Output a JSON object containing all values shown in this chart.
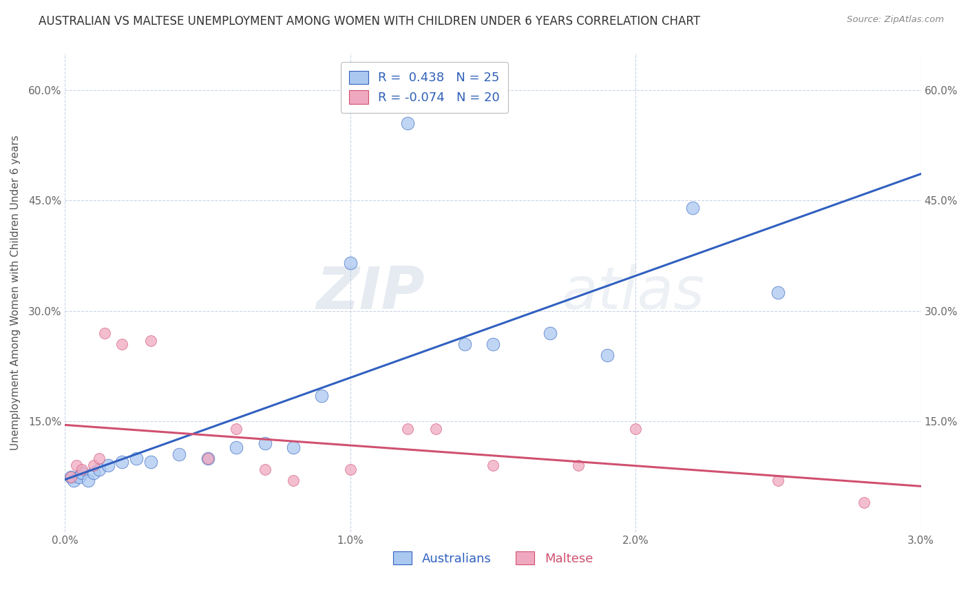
{
  "title": "AUSTRALIAN VS MALTESE UNEMPLOYMENT AMONG WOMEN WITH CHILDREN UNDER 6 YEARS CORRELATION CHART",
  "source": "Source: ZipAtlas.com",
  "ylabel": "Unemployment Among Women with Children Under 6 years",
  "xlim": [
    0.0,
    0.03
  ],
  "ylim": [
    0.0,
    0.65
  ],
  "xtick_labels": [
    "0.0%",
    "1.0%",
    "2.0%",
    "3.0%"
  ],
  "xtick_vals": [
    0.0,
    0.01,
    0.02,
    0.03
  ],
  "ytick_labels": [
    "15.0%",
    "30.0%",
    "45.0%",
    "60.0%"
  ],
  "ytick_vals": [
    0.15,
    0.3,
    0.45,
    0.6
  ],
  "r_australian": 0.438,
  "n_australian": 25,
  "r_maltese": -0.074,
  "n_maltese": 20,
  "australian_color": "#aac8f0",
  "maltese_color": "#f0a8c0",
  "australian_line_color": "#3060c0",
  "maltese_line_color": "#d05070",
  "legend_text_color": "#3060b8",
  "watermark_zip": "ZIP",
  "watermark_atlas": "atlas",
  "aus_x": [
    0.0002,
    0.0003,
    0.0005,
    0.0006,
    0.0008,
    0.001,
    0.0012,
    0.0015,
    0.002,
    0.0025,
    0.003,
    0.004,
    0.005,
    0.006,
    0.007,
    0.008,
    0.009,
    0.01,
    0.012,
    0.014,
    0.015,
    0.017,
    0.019,
    0.022,
    0.025
  ],
  "aus_y": [
    0.075,
    0.07,
    0.075,
    0.08,
    0.07,
    0.08,
    0.085,
    0.09,
    0.095,
    0.1,
    0.095,
    0.105,
    0.1,
    0.115,
    0.12,
    0.115,
    0.185,
    0.365,
    0.555,
    0.255,
    0.255,
    0.27,
    0.24,
    0.44,
    0.325
  ],
  "mal_x": [
    0.0002,
    0.0004,
    0.0006,
    0.001,
    0.0012,
    0.0014,
    0.002,
    0.003,
    0.005,
    0.006,
    0.007,
    0.008,
    0.01,
    0.012,
    0.013,
    0.015,
    0.018,
    0.02,
    0.025,
    0.028
  ],
  "mal_y": [
    0.075,
    0.09,
    0.085,
    0.09,
    0.1,
    0.27,
    0.255,
    0.26,
    0.1,
    0.14,
    0.085,
    0.07,
    0.085,
    0.14,
    0.14,
    0.09,
    0.09,
    0.14,
    0.07,
    0.04
  ],
  "aus_dot_size": 180,
  "mal_dot_size": 130,
  "background_color": "#ffffff",
  "grid_color": "#c8d4e8",
  "title_fontsize": 12,
  "axis_label_fontsize": 11,
  "tick_fontsize": 11,
  "legend_fontsize": 13
}
